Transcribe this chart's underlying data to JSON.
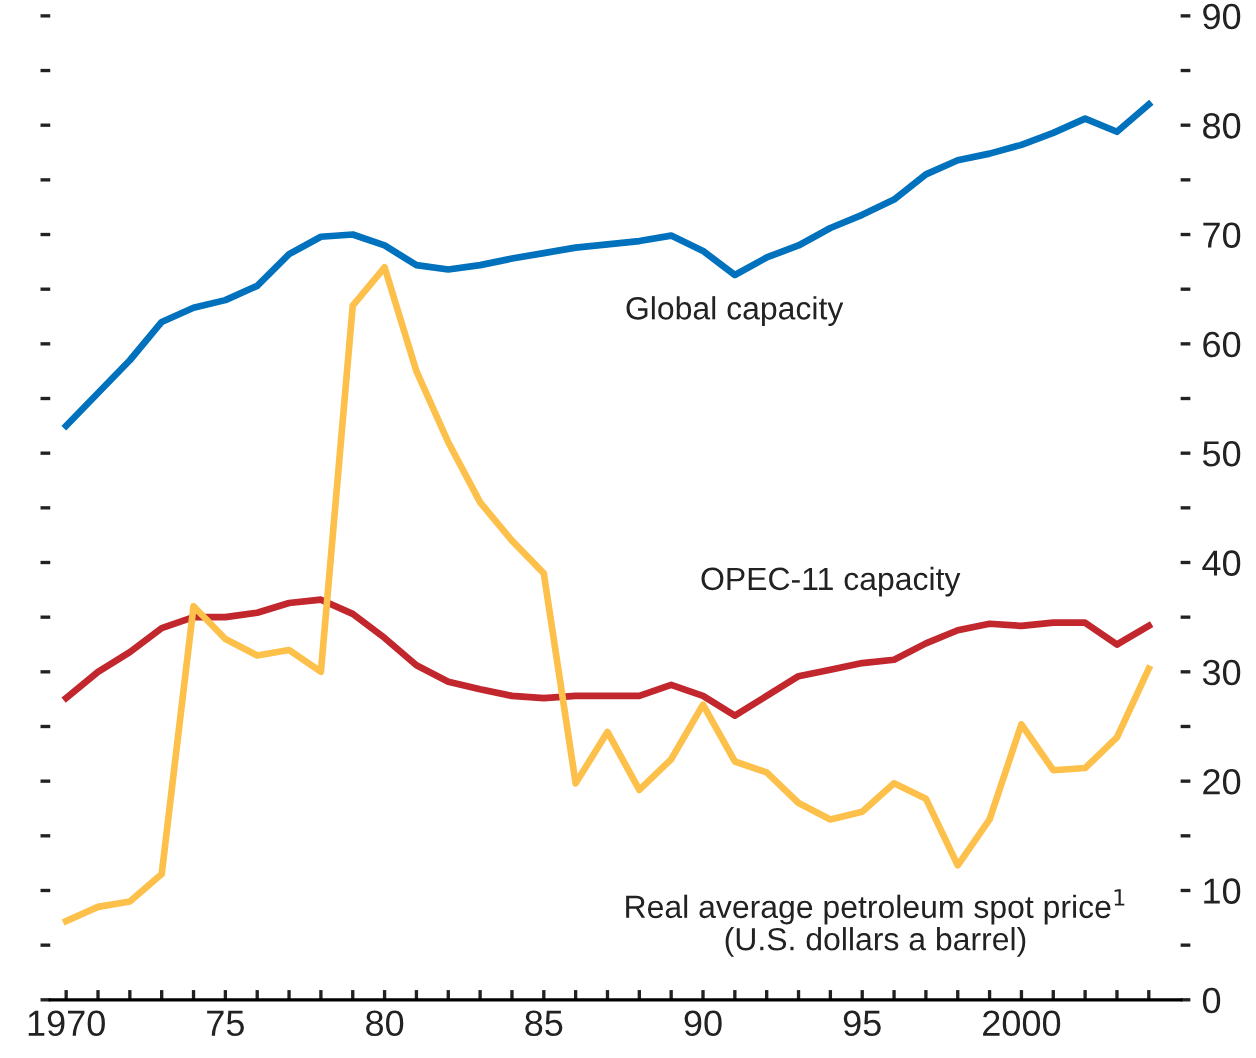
{
  "chart_data": {
    "type": "line",
    "x": [
      1970,
      1971,
      1972,
      1973,
      1974,
      1975,
      1976,
      1977,
      1978,
      1979,
      1980,
      1981,
      1982,
      1983,
      1984,
      1985,
      1986,
      1987,
      1988,
      1989,
      1990,
      1991,
      1992,
      1993,
      1994,
      1995,
      1996,
      1997,
      1998,
      1999,
      2000,
      2001,
      2002,
      2003,
      2004
    ],
    "series": [
      {
        "name": "Global capacity",
        "color": "#0071bc",
        "values": [
          52.5,
          55.5,
          58.5,
          62,
          63.3,
          64,
          65.3,
          68.2,
          69.8,
          70,
          69,
          67.2,
          66.8,
          67.2,
          67.8,
          68.3,
          68.8,
          69.1,
          69.4,
          69.9,
          68.5,
          66.3,
          67.9,
          69,
          70.6,
          71.8,
          73.2,
          75.5,
          76.8,
          77.4,
          78.2,
          79.3,
          80.6,
          79.4,
          81.9
        ]
      },
      {
        "name": "OPEC-11 capacity",
        "color": "#c1272d",
        "values": [
          27.6,
          30,
          31.8,
          34,
          35,
          35,
          35.4,
          36.3,
          36.6,
          35.3,
          33.1,
          30.6,
          29.1,
          28.4,
          27.8,
          27.6,
          27.8,
          27.8,
          27.8,
          28.8,
          27.8,
          26,
          27.8,
          29.6,
          30.2,
          30.8,
          31.1,
          32.6,
          33.8,
          34.4,
          34.2,
          34.5,
          34.5,
          32.5,
          34.2
        ]
      },
      {
        "name": "Real average petroleum spot price$^{1}$\n(U.S. dollars a barrel)",
        "color": "#fdc04a",
        "values": [
          7.2,
          8.5,
          9,
          11.5,
          36,
          33,
          31.5,
          32,
          30,
          63.5,
          67,
          57.5,
          51,
          45.5,
          42,
          39,
          19.8,
          24.5,
          19.2,
          22,
          27,
          21.8,
          20.8,
          18,
          16.5,
          17.2,
          19.8,
          18.4,
          12.3,
          16.5,
          25.2,
          21,
          21.2,
          24,
          30.3
        ]
      }
    ],
    "xlim": [
      1969.5,
      2005
    ],
    "xticks": [
      1970,
      {
        "value": 1971,
        "label": null
      },
      {
        "value": 1972,
        "label": null
      },
      {
        "value": 1973,
        "label": null
      },
      {
        "value": 1974,
        "label": null
      },
      {
        "value": 1975,
        "label": "75"
      },
      {
        "value": 1976,
        "label": null
      },
      {
        "value": 1977,
        "label": null
      },
      {
        "value": 1978,
        "label": null
      },
      {
        "value": 1979,
        "label": null
      },
      {
        "value": 1980,
        "label": "80"
      },
      {
        "value": 1981,
        "label": null
      },
      {
        "value": 1982,
        "label": null
      },
      {
        "value": 1983,
        "label": null
      },
      {
        "value": 1984,
        "label": null
      },
      {
        "value": 1985,
        "label": "85"
      },
      {
        "value": 1986,
        "label": null
      },
      {
        "value": 1987,
        "label": null
      },
      {
        "value": 1988,
        "label": null
      },
      {
        "value": 1989,
        "label": null
      },
      {
        "value": 1990,
        "label": "90"
      },
      {
        "value": 1991,
        "label": null
      },
      {
        "value": 1992,
        "label": null
      },
      {
        "value": 1993,
        "label": null
      },
      {
        "value": 1994,
        "label": null
      },
      {
        "value": 1995,
        "label": "95"
      },
      {
        "value": 1996,
        "label": null
      },
      {
        "value": 1997,
        "label": null
      },
      {
        "value": 1998,
        "label": null
      },
      {
        "value": 1999,
        "label": null
      },
      2000,
      {
        "value": 2001,
        "label": null
      },
      {
        "value": 2002,
        "label": null
      },
      {
        "value": 2003,
        "label": null
      },
      {
        "value": 2004,
        "label": null
      }
    ],
    "ylim": [
      0,
      90
    ],
    "yticks": [
      0,
      {
        "value": 5,
        "label": null
      },
      10,
      {
        "value": 15,
        "label": null
      },
      20,
      {
        "value": 25,
        "label": null
      },
      30,
      {
        "value": 35,
        "label": null
      },
      40,
      {
        "value": 45,
        "label": null
      },
      50,
      {
        "value": 55,
        "label": null
      },
      60,
      {
        "value": 65,
        "label": null
      },
      70,
      {
        "value": 75,
        "label": null
      },
      80,
      {
        "value": 85,
        "label": null
      },
      90
    ],
    "grid": false,
    "legend": false,
    "line_style": "solid",
    "marker": "none"
  }
}
